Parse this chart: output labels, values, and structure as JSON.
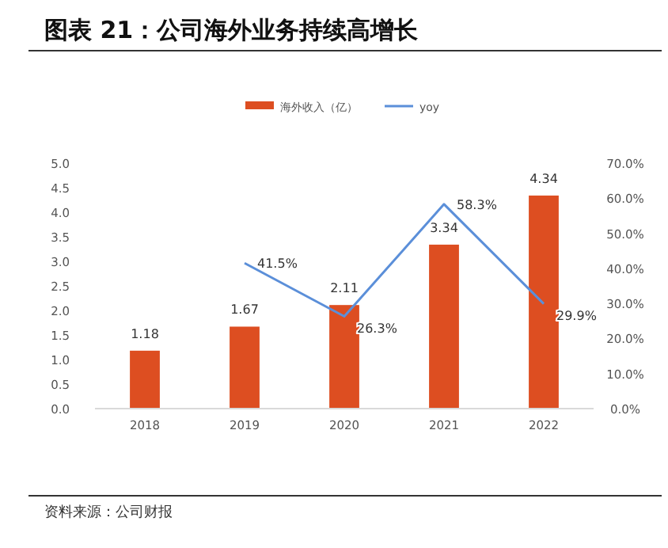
{
  "chart_data": {
    "type": "bar",
    "title": "图表 21：公司海外业务持续高增长",
    "categories": [
      "2018",
      "2019",
      "2020",
      "2021",
      "2022"
    ],
    "series": [
      {
        "name": "海外收入（亿）",
        "color": "#dd4e21",
        "values": [
          1.18,
          1.67,
          2.11,
          3.34,
          4.34
        ],
        "value_labels": [
          "1.18",
          "1.67",
          "2.11",
          "3.34",
          "4.34"
        ]
      },
      {
        "name": "yoy",
        "type": "line",
        "axis": "y2",
        "color": "#5b8fd9",
        "values": [
          null,
          41.5,
          26.3,
          58.3,
          29.9
        ],
        "value_labels": [
          null,
          "41.5%",
          "26.3%",
          "58.3%",
          "29.9%"
        ]
      }
    ],
    "ylim": [
      0,
      5
    ],
    "yticks": [
      {
        "value": 0,
        "label": "0.0"
      },
      {
        "value": 0.5,
        "label": "0.5"
      },
      {
        "value": 1,
        "label": "1.0"
      },
      {
        "value": 1.5,
        "label": "1.5"
      },
      {
        "value": 2,
        "label": "2.0"
      },
      {
        "value": 2.5,
        "label": "2.5"
      },
      {
        "value": 3,
        "label": "3.0"
      },
      {
        "value": 3.5,
        "label": "3.5"
      },
      {
        "value": 4,
        "label": "4.0"
      },
      {
        "value": 4.5,
        "label": "4.5"
      },
      {
        "value": 5,
        "label": "5.0"
      }
    ],
    "y2lim": [
      0,
      70
    ],
    "y2ticks": [
      {
        "value": 0,
        "label": "0.0%"
      },
      {
        "value": 10,
        "label": "10.0%"
      },
      {
        "value": 20,
        "label": "20.0%"
      },
      {
        "value": 30,
        "label": "30.0%"
      },
      {
        "value": 40,
        "label": "40.0%"
      },
      {
        "value": 50,
        "label": "50.0%"
      },
      {
        "value": 60,
        "label": "60.0%"
      },
      {
        "value": 70,
        "label": "70.0%"
      }
    ],
    "legend": "top",
    "grid": false,
    "marker": "none",
    "line_style": "solid",
    "annotations": [
      "资料来源：公司财报"
    ]
  }
}
